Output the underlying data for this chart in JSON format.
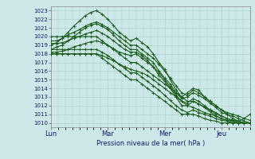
{
  "xlabel": "Pression niveau de la mer( hPa )",
  "bg_color": "#cce8e8",
  "plot_bg_color": "#cce8e8",
  "grid_color": "#aacccc",
  "line_color": "#1a5c1a",
  "ylim": [
    1009.5,
    1023.5
  ],
  "yticks": [
    1010,
    1011,
    1012,
    1013,
    1014,
    1015,
    1016,
    1017,
    1018,
    1019,
    1020,
    1021,
    1022,
    1023
  ],
  "xtick_labels": [
    "Lun",
    "Mar",
    "Mer",
    "Jeu"
  ],
  "xtick_positions": [
    0,
    48,
    96,
    144
  ],
  "total_hours": 168,
  "lines": [
    [
      1019,
      1019.3,
      1019.8,
      1020.5,
      1021.2,
      1021.8,
      1022.4,
      1022.8,
      1023.0,
      1022.6,
      1022.0,
      1021.3,
      1020.5,
      1020.0,
      1019.5,
      1019.8,
      1019.3,
      1018.8,
      1018.0,
      1017.0,
      1016.2,
      1015.0,
      1013.8,
      1013.0,
      1013.5,
      1014.0,
      1013.8,
      1013.0,
      1012.5,
      1012.0,
      1011.5,
      1011.0,
      1010.5,
      1010.2,
      1010.5,
      1011.0
    ],
    [
      1018.5,
      1018.8,
      1019.0,
      1019.5,
      1020.0,
      1020.5,
      1021.0,
      1021.3,
      1021.5,
      1021.2,
      1020.8,
      1020.2,
      1019.5,
      1019.0,
      1018.5,
      1018.5,
      1018.0,
      1017.5,
      1017.0,
      1016.0,
      1015.2,
      1014.5,
      1013.5,
      1012.8,
      1013.0,
      1013.5,
      1013.2,
      1012.8,
      1012.3,
      1011.8,
      1011.2,
      1011.0,
      1010.8,
      1010.5,
      1010.2,
      1010.0
    ],
    [
      1018.2,
      1018.2,
      1018.3,
      1018.5,
      1018.8,
      1019.0,
      1019.2,
      1019.4,
      1019.5,
      1019.3,
      1019.0,
      1018.6,
      1018.2,
      1018.0,
      1017.8,
      1018.0,
      1017.5,
      1017.0,
      1016.5,
      1015.5,
      1014.8,
      1014.0,
      1013.0,
      1012.0,
      1012.0,
      1012.5,
      1012.2,
      1011.8,
      1011.3,
      1010.8,
      1010.5,
      1010.3,
      1010.2,
      1010.0,
      1010.0,
      1010.0
    ],
    [
      1019.2,
      1019.2,
      1019.3,
      1019.5,
      1019.8,
      1020.0,
      1020.3,
      1020.5,
      1020.7,
      1020.4,
      1020.0,
      1019.5,
      1019.0,
      1018.5,
      1018.2,
      1018.2,
      1017.8,
      1017.2,
      1016.5,
      1015.8,
      1015.0,
      1014.2,
      1013.2,
      1012.5,
      1012.3,
      1012.8,
      1012.5,
      1012.0,
      1011.5,
      1011.0,
      1010.8,
      1010.5,
      1010.3,
      1010.2,
      1010.0,
      1010.0
    ],
    [
      1019.5,
      1019.5,
      1019.8,
      1020.2,
      1020.5,
      1020.8,
      1021.2,
      1021.5,
      1021.7,
      1021.4,
      1021.0,
      1020.5,
      1020.0,
      1019.5,
      1019.0,
      1019.0,
      1018.5,
      1018.0,
      1017.5,
      1016.8,
      1016.0,
      1015.2,
      1014.3,
      1013.5,
      1013.2,
      1013.8,
      1013.5,
      1013.0,
      1012.5,
      1012.0,
      1011.5,
      1011.2,
      1011.0,
      1010.8,
      1010.5,
      1010.3
    ],
    [
      1018.0,
      1018.0,
      1018.0,
      1018.0,
      1018.0,
      1018.0,
      1018.0,
      1018.0,
      1018.0,
      1017.5,
      1017.0,
      1016.5,
      1016.0,
      1015.5,
      1015.0,
      1015.0,
      1014.5,
      1014.0,
      1013.5,
      1013.0,
      1012.5,
      1012.0,
      1011.5,
      1011.0,
      1011.0,
      1011.0,
      1010.8,
      1010.5,
      1010.3,
      1010.2,
      1010.0,
      1010.0,
      1010.0,
      1010.0,
      1010.0,
      1010.0
    ],
    [
      1018.0,
      1018.0,
      1018.0,
      1018.0,
      1018.0,
      1018.0,
      1018.0,
      1018.0,
      1018.0,
      1017.8,
      1017.5,
      1017.2,
      1016.8,
      1016.5,
      1016.2,
      1016.0,
      1015.8,
      1015.5,
      1015.0,
      1014.5,
      1014.0,
      1013.5,
      1013.0,
      1012.5,
      1012.0,
      1011.8,
      1011.5,
      1011.2,
      1011.0,
      1010.8,
      1010.5,
      1010.3,
      1010.2,
      1010.0,
      1010.0,
      1010.0
    ],
    [
      1018.5,
      1018.5,
      1018.5,
      1018.5,
      1018.5,
      1018.5,
      1018.5,
      1018.5,
      1018.5,
      1018.2,
      1017.8,
      1017.3,
      1016.8,
      1016.3,
      1015.8,
      1015.8,
      1015.3,
      1014.8,
      1014.3,
      1013.8,
      1013.2,
      1012.6,
      1012.0,
      1011.5,
      1011.2,
      1011.5,
      1011.2,
      1011.0,
      1010.8,
      1010.5,
      1010.3,
      1010.2,
      1010.0,
      1010.0,
      1010.0,
      1010.0
    ],
    [
      1020.0,
      1020.0,
      1020.0,
      1020.0,
      1020.0,
      1020.0,
      1020.0,
      1020.0,
      1020.0,
      1019.5,
      1019.0,
      1018.5,
      1018.0,
      1017.5,
      1017.0,
      1017.0,
      1016.5,
      1016.0,
      1015.5,
      1015.0,
      1014.5,
      1014.0,
      1013.5,
      1013.0,
      1012.5,
      1012.5,
      1012.2,
      1011.8,
      1011.5,
      1011.2,
      1010.8,
      1010.5,
      1010.3,
      1010.2,
      1010.0,
      1010.0
    ]
  ],
  "marker_size": 2.5,
  "linewidth": 0.8
}
